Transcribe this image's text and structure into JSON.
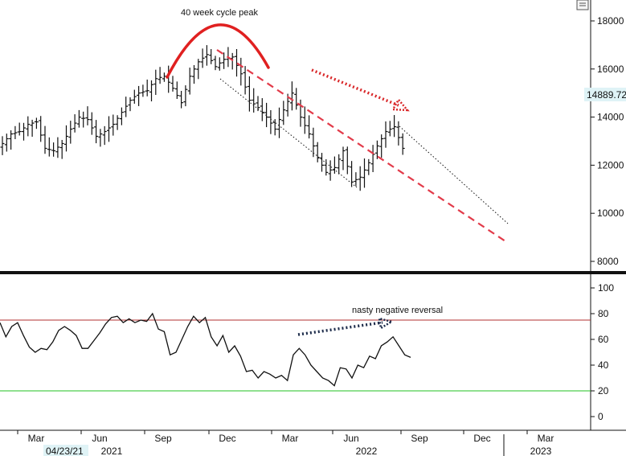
{
  "chart_data": [
    {
      "type": "bar",
      "subtype": "weekly-ohlc",
      "annotation_text": "40 week cycle peak",
      "last_price_label": "14889.72",
      "yticks": [
        8000,
        10000,
        12000,
        14000,
        16000,
        18000
      ],
      "ylim": [
        7500,
        18800
      ],
      "x_months": [
        "Mar",
        "Jun",
        "Sep",
        "Dec",
        "Mar",
        "Jun",
        "Sep",
        "Dec",
        "Mar"
      ],
      "x_years": [
        "2021",
        "2022",
        "2023"
      ],
      "date_label": "04/23/21",
      "ohlc_close_path": [
        [
          0,
          12900
        ],
        [
          2,
          13300
        ],
        [
          4,
          13400
        ],
        [
          6,
          13700
        ],
        [
          8,
          13800
        ],
        [
          10,
          12700
        ],
        [
          12,
          12600
        ],
        [
          14,
          12900
        ],
        [
          16,
          13500
        ],
        [
          18,
          14000
        ],
        [
          20,
          13900
        ],
        [
          22,
          13200
        ],
        [
          24,
          13400
        ],
        [
          26,
          13700
        ],
        [
          28,
          14200
        ],
        [
          30,
          14700
        ],
        [
          32,
          15000
        ],
        [
          34,
          15100
        ],
        [
          36,
          15600
        ],
        [
          38,
          15700
        ],
        [
          40,
          15200
        ],
        [
          42,
          14600
        ],
        [
          44,
          15700
        ],
        [
          46,
          16300
        ],
        [
          48,
          16600
        ],
        [
          50,
          16100
        ],
        [
          52,
          16400
        ],
        [
          54,
          16500
        ],
        [
          56,
          15800
        ],
        [
          58,
          14700
        ],
        [
          60,
          14400
        ],
        [
          62,
          14000
        ],
        [
          64,
          13500
        ],
        [
          66,
          14300
        ],
        [
          68,
          15000
        ],
        [
          70,
          14000
        ],
        [
          72,
          13300
        ],
        [
          74,
          12300
        ],
        [
          76,
          11700
        ],
        [
          78,
          11900
        ],
        [
          80,
          12600
        ],
        [
          82,
          11300
        ],
        [
          84,
          11500
        ],
        [
          86,
          12100
        ],
        [
          88,
          12800
        ],
        [
          90,
          13400
        ],
        [
          92,
          13600
        ],
        [
          94,
          12700
        ]
      ],
      "colors": {
        "bars": "#111111",
        "cycle_arc": "#e02020",
        "red_channel": "#e23b4a",
        "dotted_arrow": "#d9282a"
      }
    },
    {
      "type": "line",
      "annotation_text": "nasty negative reversal",
      "yticks": [
        0,
        20,
        40,
        60,
        80,
        100
      ],
      "ylim": [
        -10,
        110
      ],
      "overbought_level": 75,
      "oversold_level": 20,
      "values": [
        [
          0,
          73
        ],
        [
          1,
          62
        ],
        [
          2,
          70
        ],
        [
          3,
          73
        ],
        [
          4,
          63
        ],
        [
          5,
          54
        ],
        [
          6,
          50
        ],
        [
          7,
          53
        ],
        [
          8,
          52
        ],
        [
          9,
          58
        ],
        [
          10,
          67
        ],
        [
          11,
          70
        ],
        [
          12,
          67
        ],
        [
          13,
          63
        ],
        [
          14,
          53
        ],
        [
          15,
          53
        ],
        [
          16,
          59
        ],
        [
          17,
          65
        ],
        [
          18,
          72
        ],
        [
          19,
          77
        ],
        [
          20,
          78
        ],
        [
          21,
          73
        ],
        [
          22,
          76
        ],
        [
          23,
          73
        ],
        [
          24,
          75
        ],
        [
          25,
          74
        ],
        [
          26,
          80
        ],
        [
          27,
          68
        ],
        [
          28,
          66
        ],
        [
          29,
          48
        ],
        [
          30,
          50
        ],
        [
          31,
          60
        ],
        [
          32,
          70
        ],
        [
          33,
          78
        ],
        [
          34,
          73
        ],
        [
          35,
          77
        ],
        [
          36,
          62
        ],
        [
          37,
          55
        ],
        [
          38,
          63
        ],
        [
          39,
          50
        ],
        [
          40,
          55
        ],
        [
          41,
          47
        ],
        [
          42,
          35
        ],
        [
          43,
          36
        ],
        [
          44,
          30
        ],
        [
          45,
          35
        ],
        [
          46,
          33
        ],
        [
          47,
          30
        ],
        [
          48,
          32
        ],
        [
          49,
          28
        ],
        [
          50,
          48
        ],
        [
          51,
          53
        ],
        [
          52,
          48
        ],
        [
          53,
          40
        ],
        [
          54,
          35
        ],
        [
          55,
          30
        ],
        [
          56,
          28
        ],
        [
          57,
          24
        ],
        [
          58,
          38
        ],
        [
          59,
          37
        ],
        [
          60,
          30
        ],
        [
          61,
          40
        ],
        [
          62,
          38
        ],
        [
          63,
          47
        ],
        [
          64,
          45
        ],
        [
          65,
          55
        ],
        [
          66,
          58
        ],
        [
          67,
          62
        ],
        [
          68,
          55
        ],
        [
          69,
          48
        ],
        [
          70,
          46
        ]
      ],
      "colors": {
        "line": "#111111",
        "upper_level": "#b03030",
        "lower_level": "#22c022",
        "dotted_arrow": "#1c2b4a"
      }
    }
  ]
}
